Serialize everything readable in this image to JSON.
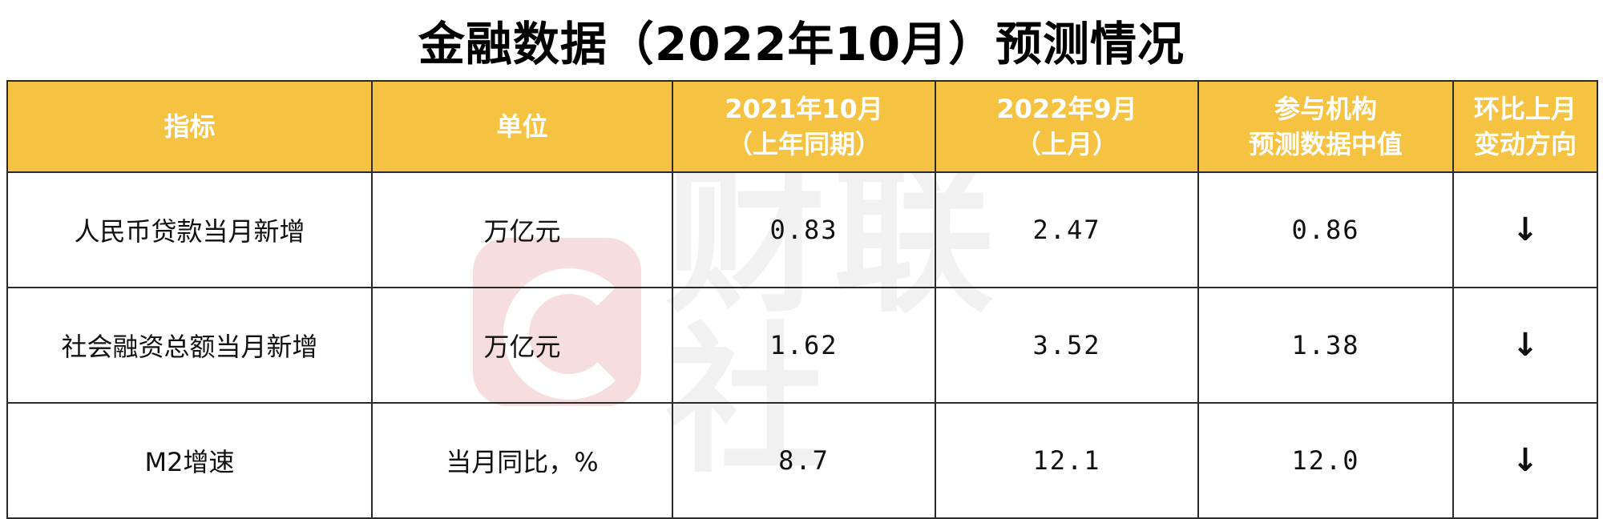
{
  "title": "金融数据（2022年10月）预测情况",
  "watermark": "财联社",
  "headers": [
    {
      "line1": "指标",
      "line2": ""
    },
    {
      "line1": "单位",
      "line2": ""
    },
    {
      "line1": "2021年10月",
      "line2": "（上年同期）"
    },
    {
      "line1": "2022年9月",
      "line2": "（上月）"
    },
    {
      "line1": "参与机构",
      "line2": "预测数据中值"
    },
    {
      "line1": "环比上月",
      "line2": "变动方向"
    }
  ],
  "rows": [
    {
      "indicator": "人民币贷款当月新增",
      "unit": "万亿元",
      "last_year": "0.83",
      "last_month": "2.47",
      "median": "0.86",
      "direction": "↓"
    },
    {
      "indicator": "社会融资总额当月新增",
      "unit": "万亿元",
      "last_year": "1.62",
      "last_month": "3.52",
      "median": "1.38",
      "direction": "↓"
    },
    {
      "indicator": "M2增速",
      "unit": "当月同比，%",
      "last_year": "8.7",
      "last_month": "12.1",
      "median": "12.0",
      "direction": "↓"
    }
  ],
  "colors": {
    "header_bg": "#f5c242",
    "header_text": "#ffffff",
    "border": "#2a2a2a"
  }
}
